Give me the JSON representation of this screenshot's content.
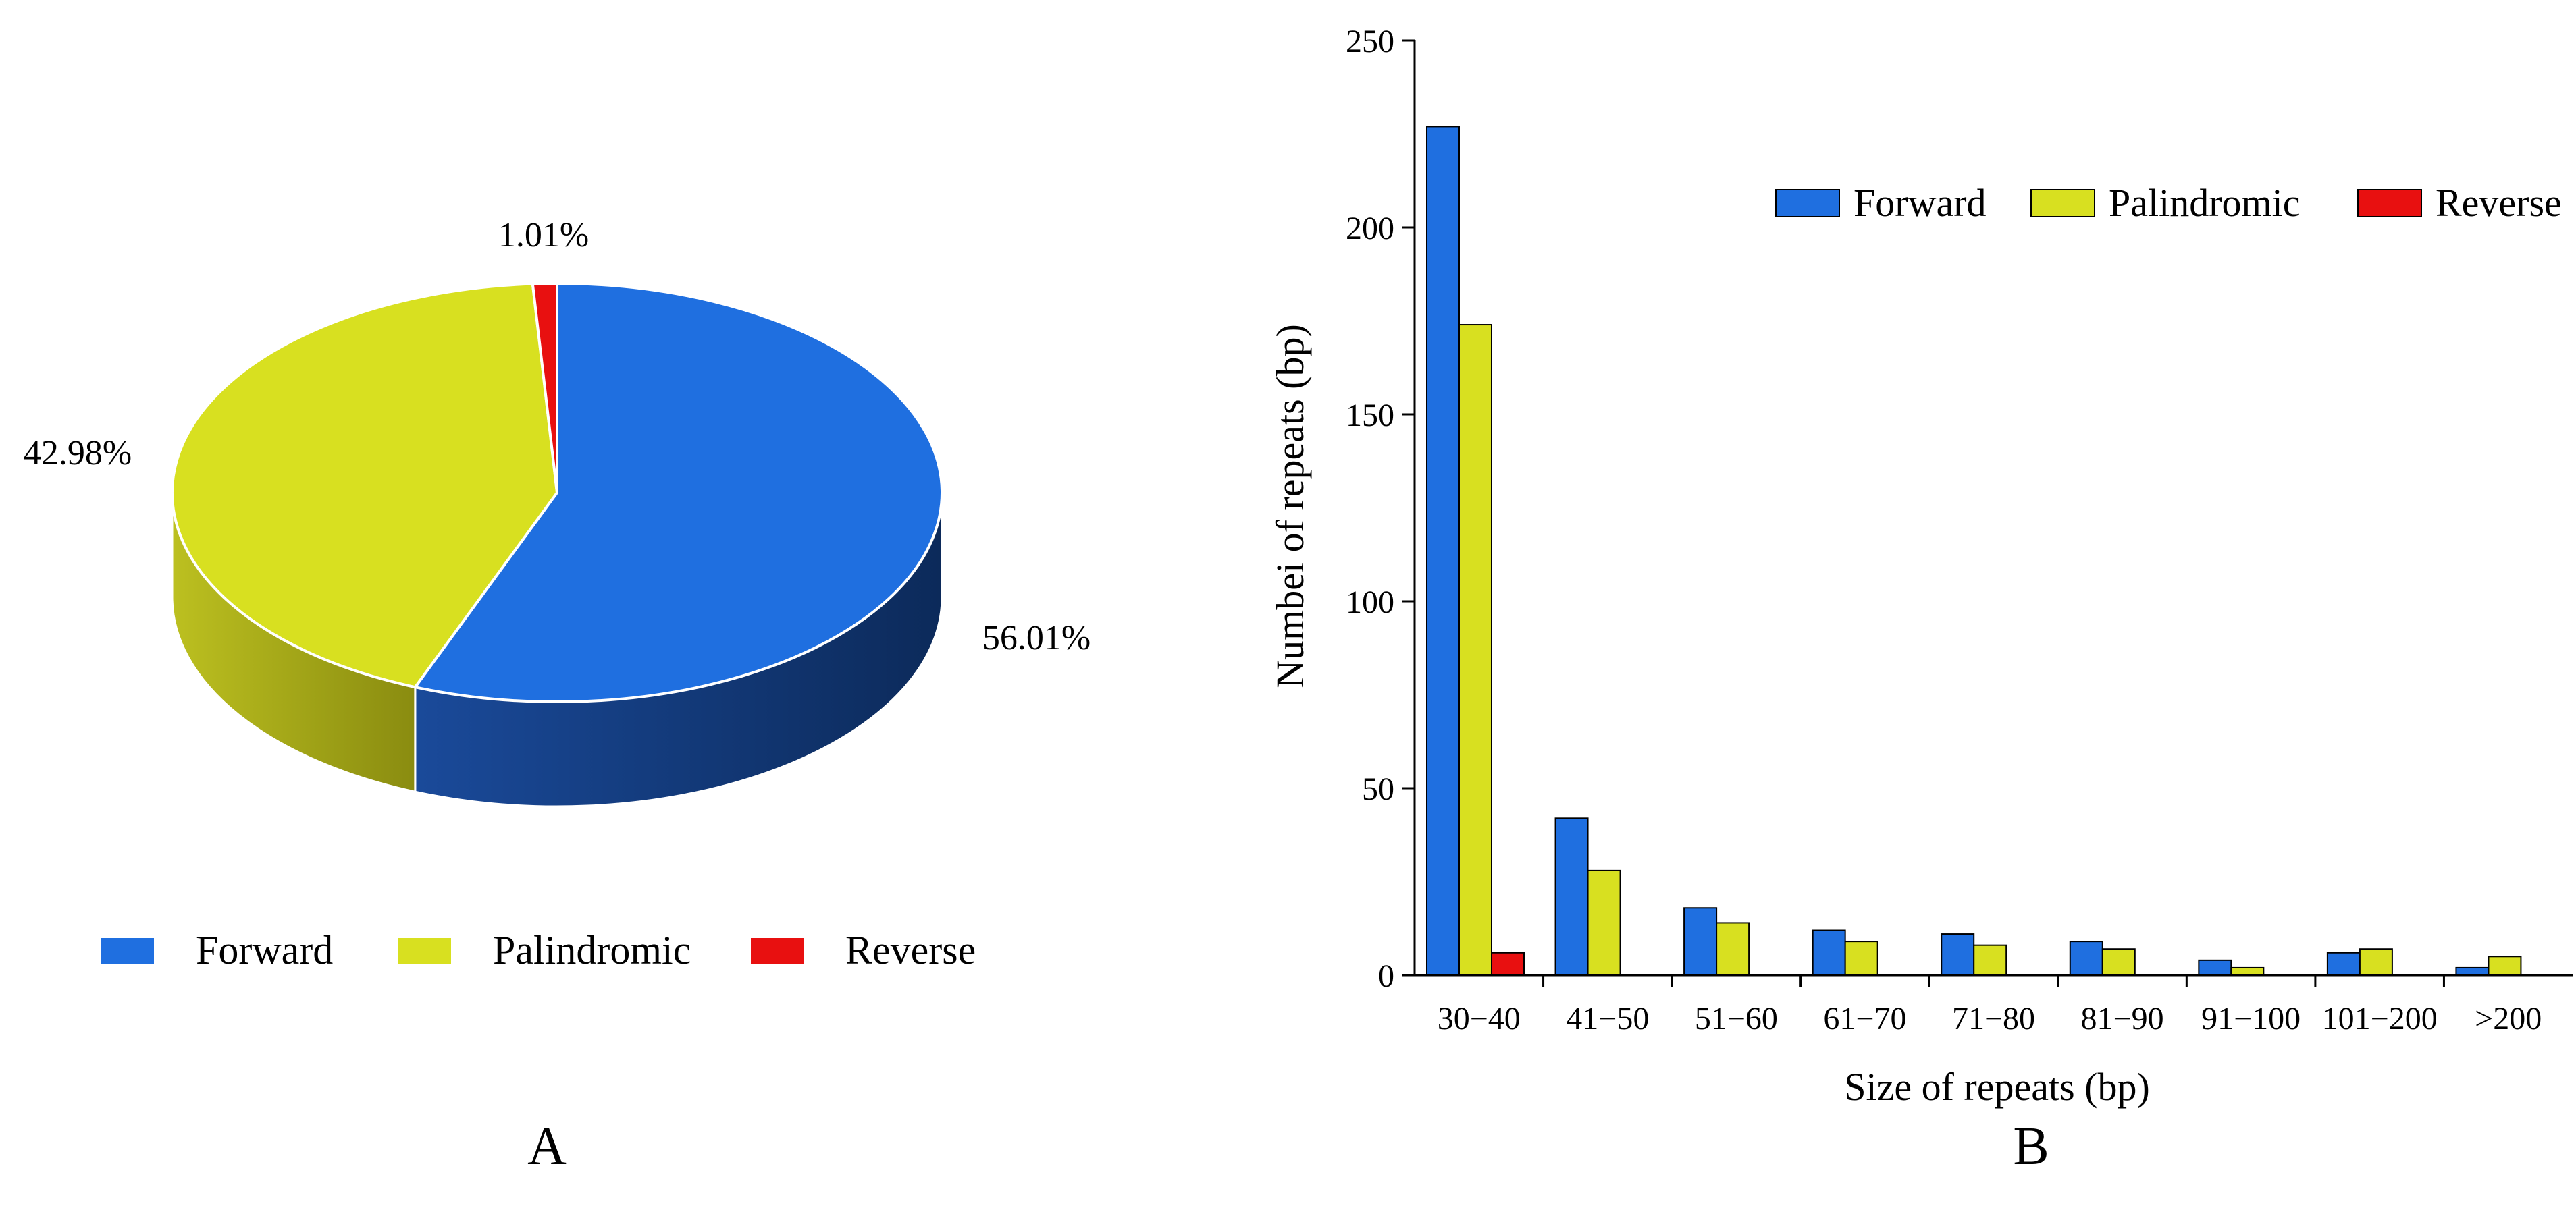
{
  "colors": {
    "forward": "#1f6fe0",
    "forward_side_light": "#1a4a9a",
    "forward_side_dark": "#0c2a5a",
    "palindromic": "#d8e020",
    "palindromic_side_light": "#bcc020",
    "palindromic_side_dark": "#8a8c10",
    "reverse": "#e81010"
  },
  "panels": {
    "a_label": "A",
    "b_label": "B"
  },
  "chart_data": [
    {
      "type": "pie",
      "style": "3d",
      "categories": [
        "Forward",
        "Palindromic",
        "Reverse"
      ],
      "values": [
        56.01,
        42.98,
        1.01
      ],
      "slice_labels": [
        "56.01%",
        "42.98%",
        "1.01%"
      ],
      "legend": [
        "Forward",
        "Palindromic",
        "Reverse"
      ],
      "legend_position": "bottom"
    },
    {
      "type": "bar",
      "categories": [
        "30−40",
        "41−50",
        "51−60",
        "61−70",
        "71−80",
        "81−90",
        "91−100",
        "101−200",
        ">200"
      ],
      "series": [
        {
          "name": "Forward",
          "values": [
            227,
            42,
            18,
            12,
            11,
            9,
            4,
            6,
            2
          ]
        },
        {
          "name": "Palindromic",
          "values": [
            174,
            28,
            14,
            9,
            8,
            7,
            2,
            7,
            5
          ]
        },
        {
          "name": "Reverse",
          "values": [
            6,
            0,
            0,
            0,
            0,
            0,
            0,
            0,
            0
          ]
        }
      ],
      "xlabel": "Size of repeats (bp)",
      "ylabel": "Numbei of repeats (bp)",
      "ylim": [
        0,
        250
      ],
      "yticks": [
        0,
        50,
        100,
        150,
        200,
        250
      ],
      "ytick_labels": [
        "0",
        "50",
        "100",
        "150",
        "200",
        "250"
      ],
      "legend_position": "top-right",
      "grid": false
    }
  ]
}
